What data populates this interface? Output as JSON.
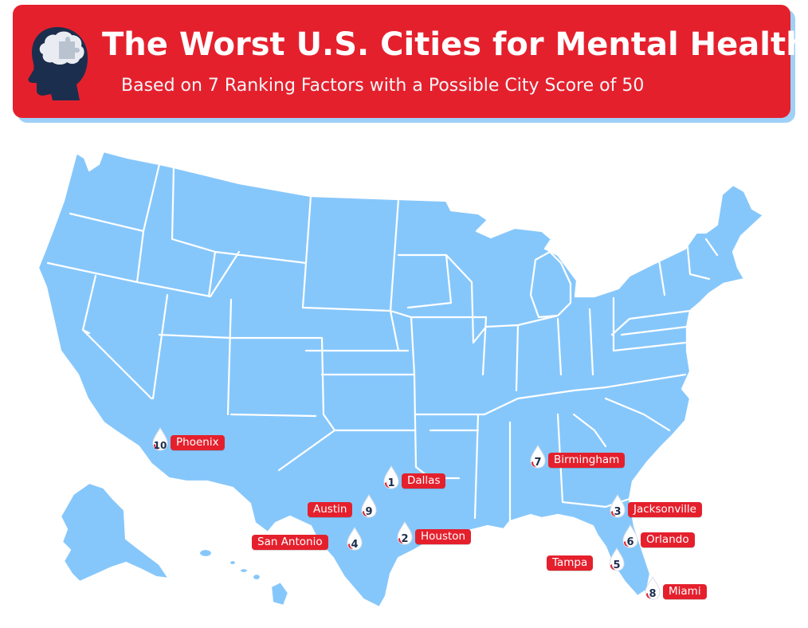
{
  "header": {
    "title": "The Worst U.S. Cities for Mental Health",
    "subtitle": "Based on 7 Ranking Factors with a Possible City Score of 50",
    "icon": "head-with-puzzle-brain-icon"
  },
  "colors": {
    "banner": "#e5202d",
    "banner_shadow": "#9fd0f7",
    "state_fill": "#86c7fb",
    "state_border": "#ffffff",
    "label_bg": "#e5202d",
    "rank_text": "#1c2e4d"
  },
  "markers": [
    {
      "rank": "1",
      "city": "Dallas"
    },
    {
      "rank": "2",
      "city": "Houston"
    },
    {
      "rank": "3",
      "city": "Jacksonville"
    },
    {
      "rank": "4",
      "city": "San Antonio"
    },
    {
      "rank": "5",
      "city": "Tampa"
    },
    {
      "rank": "6",
      "city": "Orlando"
    },
    {
      "rank": "7",
      "city": "Birmingham"
    },
    {
      "rank": "8",
      "city": "Miami"
    },
    {
      "rank": "9",
      "city": "Austin"
    },
    {
      "rank": "10",
      "city": "Phoenix"
    }
  ]
}
